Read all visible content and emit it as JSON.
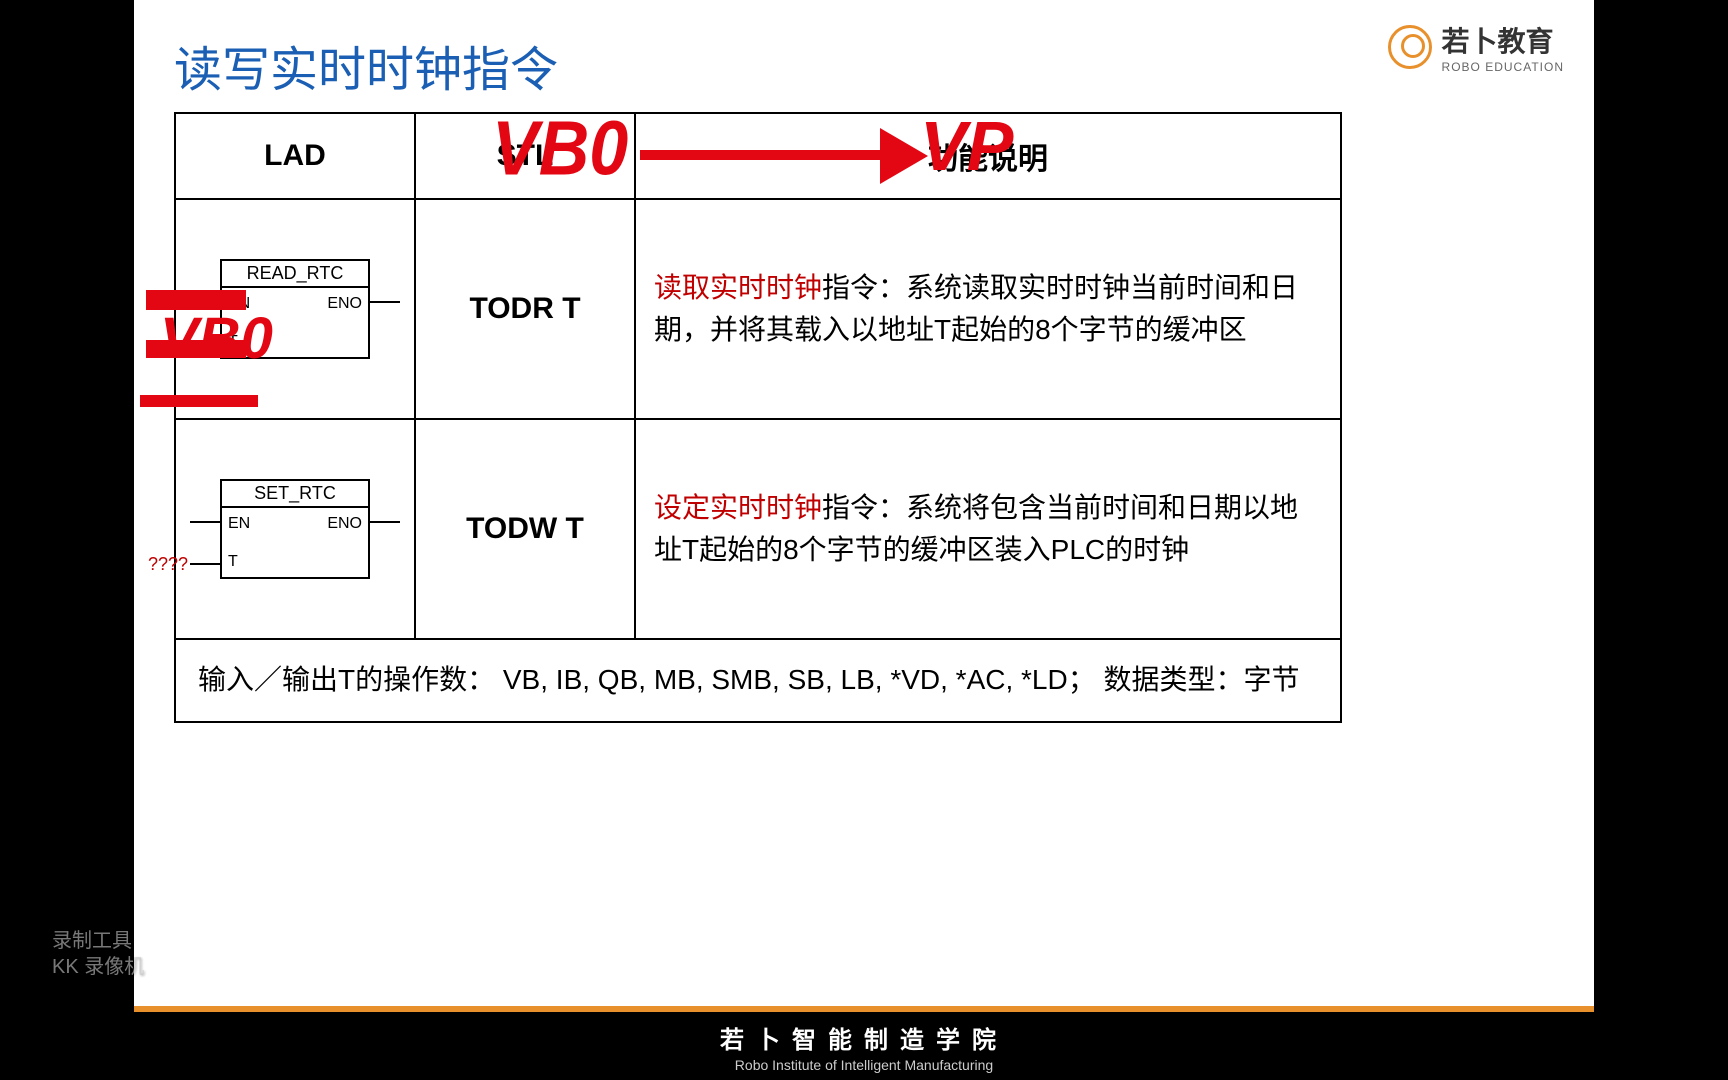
{
  "title": "读写实时时钟指令",
  "logo": {
    "cn": "若卜教育",
    "en": "ROBO EDUCATION"
  },
  "headers": {
    "lad": "LAD",
    "stl": "STL",
    "desc": "功能说明"
  },
  "row1": {
    "lad_name": "READ_RTC",
    "en": "EN",
    "eno": "ENO",
    "t": "T",
    "stl": "TODR  T",
    "desc_red": "读取实时时钟",
    "desc_rest": "指令：系统读取实时时钟当前时间和日期，并将其载入以地址T起始的8个字节的缓冲区"
  },
  "row2": {
    "lad_name": "SET_RTC",
    "en": "EN",
    "eno": "ENO",
    "t": "T",
    "q": "????",
    "stl": "TODW  T",
    "desc_red": "设定实时时钟",
    "desc_rest": "指令：系统将包含当前时间和日期以地址T起始的8个字节的缓冲区装入PLC的时钟"
  },
  "footer_row": "输入／输出T的操作数： VB, IB, QB, MB, SMB, SB, LB, *VD, *AC, *LD； 数据类型：字节",
  "annotations": {
    "vb0": "VB0",
    "vp": "VP"
  },
  "bottom": {
    "cn": "若卜智能制造学院",
    "en": "Robo Institute of Intelligent Manufacturing"
  },
  "watermark": {
    "l1": "录制工具",
    "l2": "KK 录像机"
  },
  "colors": {
    "title": "#1a5fb4",
    "red_text": "#c00000",
    "anno_red": "#e30613",
    "orange": "#e8902c",
    "bg": "#ffffff",
    "frame": "#000000"
  }
}
